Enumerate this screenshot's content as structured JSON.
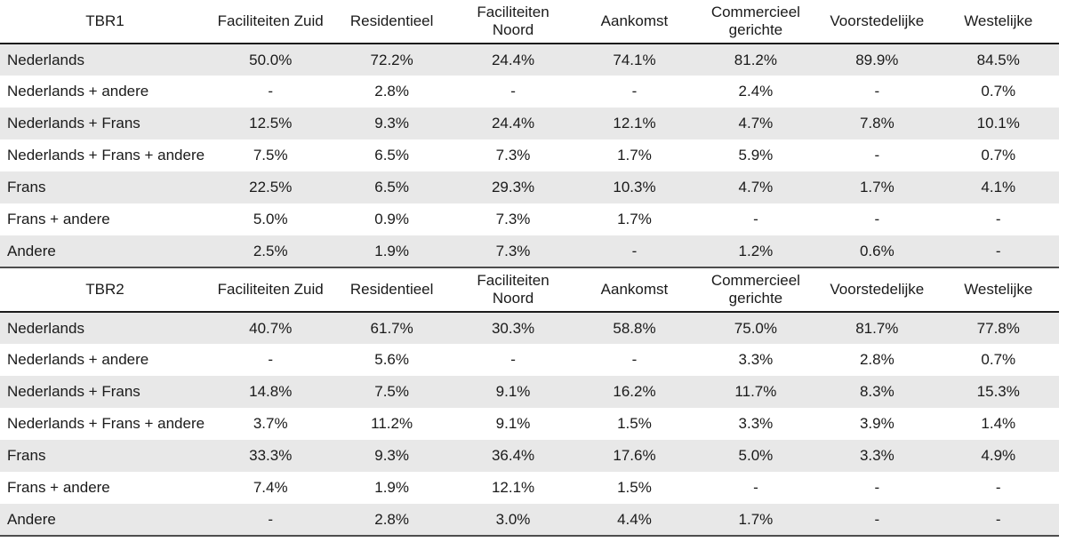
{
  "colors": {
    "stripe": "#e8e8e8",
    "header_rule": "#1c1c1c",
    "bottom_rule": "#4d4d4d",
    "text": "#1a1a1a"
  },
  "chart_data": [
    {
      "type": "table",
      "title": "TBR1",
      "categories": [
        "Faciliteiten Zuid",
        "Residentieel",
        "Faciliteiten Noord",
        "Aankomst",
        "Commercieel gerichte",
        "Voorstedelijke",
        "Westelijke"
      ],
      "series": [
        {
          "name": "Nederlands",
          "values": [
            "50.0%",
            "72.2%",
            "24.4%",
            "74.1%",
            "81.2%",
            "89.9%",
            "84.5%"
          ]
        },
        {
          "name": "Nederlands + andere",
          "values": [
            "-",
            "2.8%",
            "-",
            "-",
            "2.4%",
            "-",
            "0.7%"
          ]
        },
        {
          "name": "Nederlands + Frans",
          "values": [
            "12.5%",
            "9.3%",
            "24.4%",
            "12.1%",
            "4.7%",
            "7.8%",
            "10.1%"
          ]
        },
        {
          "name": "Nederlands + Frans + andere",
          "values": [
            "7.5%",
            "6.5%",
            "7.3%",
            "1.7%",
            "5.9%",
            "-",
            "0.7%"
          ]
        },
        {
          "name": "Frans",
          "values": [
            "22.5%",
            "6.5%",
            "29.3%",
            "10.3%",
            "4.7%",
            "1.7%",
            "4.1%"
          ]
        },
        {
          "name": "Frans + andere",
          "values": [
            "5.0%",
            "0.9%",
            "7.3%",
            "1.7%",
            "-",
            "-",
            "-"
          ]
        },
        {
          "name": "Andere",
          "values": [
            "2.5%",
            "1.9%",
            "7.3%",
            "-",
            "1.2%",
            "0.6%",
            "-"
          ]
        }
      ]
    },
    {
      "type": "table",
      "title": "TBR2",
      "categories": [
        "Faciliteiten Zuid",
        "Residentieel",
        "Faciliteiten Noord",
        "Aankomst",
        "Commercieel gerichte",
        "Voorstedelijke",
        "Westelijke"
      ],
      "series": [
        {
          "name": "Nederlands",
          "values": [
            "40.7%",
            "61.7%",
            "30.3%",
            "58.8%",
            "75.0%",
            "81.7%",
            "77.8%"
          ]
        },
        {
          "name": "Nederlands + andere",
          "values": [
            "-",
            "5.6%",
            "-",
            "-",
            "3.3%",
            "2.8%",
            "0.7%"
          ]
        },
        {
          "name": "Nederlands + Frans",
          "values": [
            "14.8%",
            "7.5%",
            "9.1%",
            "16.2%",
            "11.7%",
            "8.3%",
            "15.3%"
          ]
        },
        {
          "name": "Nederlands + Frans + andere",
          "values": [
            "3.7%",
            "11.2%",
            "9.1%",
            "1.5%",
            "3.3%",
            "3.9%",
            "1.4%"
          ]
        },
        {
          "name": "Frans",
          "values": [
            "33.3%",
            "9.3%",
            "36.4%",
            "17.6%",
            "5.0%",
            "3.3%",
            "4.9%"
          ]
        },
        {
          "name": "Frans + andere",
          "values": [
            "7.4%",
            "1.9%",
            "12.1%",
            "1.5%",
            "-",
            "-",
            "-"
          ]
        },
        {
          "name": "Andere",
          "values": [
            "-",
            "2.8%",
            "3.0%",
            "4.4%",
            "1.7%",
            "-",
            "-"
          ]
        }
      ]
    }
  ]
}
